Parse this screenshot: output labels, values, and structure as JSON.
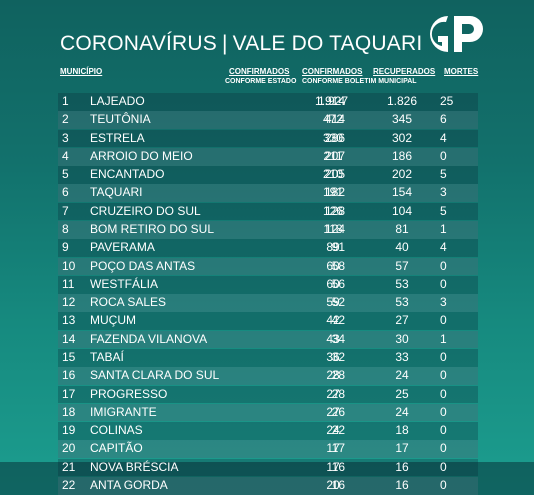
{
  "title": {
    "left": "CORONAVÍRUS",
    "separator": "|",
    "right": "VALE DO TAQUARI"
  },
  "logo": {
    "text": "GP"
  },
  "headers": {
    "municipio": "MUNICÍPIO",
    "confirmados_estado": "CONFIRMADOS",
    "confirmados_estado_sub": "CONFORME ESTADO",
    "confirmados_boletim": "CONFIRMADOS",
    "recuperados": "RECUPERADOS",
    "boletim_sub": "CONFORME BOLETIM MUNICIPAL",
    "mortes": "MORTES"
  },
  "rows": [
    {
      "num": "1",
      "name": "LAJEADO",
      "conf_estado": "1.914",
      "conf_boletim": "1.927",
      "recuperados": "1.826",
      "mortes": "25"
    },
    {
      "num": "2",
      "name": "TEUTÔNIA",
      "conf_estado": "414",
      "conf_boletim": "472",
      "recuperados": "345",
      "mortes": "6"
    },
    {
      "num": "3",
      "name": "ESTRELA",
      "conf_estado": "286",
      "conf_boletim": "330",
      "recuperados": "302",
      "mortes": "4"
    },
    {
      "num": "4",
      "name": "ARROIO DO MEIO",
      "conf_estado": "207",
      "conf_boletim": "211",
      "recuperados": "186",
      "mortes": "0"
    },
    {
      "num": "5",
      "name": "ENCANTADO",
      "conf_estado": "205",
      "conf_boletim": "210",
      "recuperados": "202",
      "mortes": "5"
    },
    {
      "num": "6",
      "name": "TAQUARI",
      "conf_estado": "182",
      "conf_boletim": "191",
      "recuperados": "154",
      "mortes": "3"
    },
    {
      "num": "7",
      "name": "CRUZEIRO DO SUL",
      "conf_estado": "128",
      "conf_boletim": "126",
      "recuperados": "104",
      "mortes": "5"
    },
    {
      "num": "8",
      "name": "BOM RETIRO DO SUL",
      "conf_estado": "124",
      "conf_boletim": "118",
      "recuperados": "81",
      "mortes": "1"
    },
    {
      "num": "9",
      "name": "PAVERAMA",
      "conf_estado": "91",
      "conf_boletim": "89",
      "recuperados": "40",
      "mortes": "4"
    },
    {
      "num": "10",
      "name": "POÇO DAS ANTAS",
      "conf_estado": "58",
      "conf_boletim": "60",
      "recuperados": "57",
      "mortes": "0"
    },
    {
      "num": "11",
      "name": "WESTFÁLIA",
      "conf_estado": "56",
      "conf_boletim": "60",
      "recuperados": "53",
      "mortes": "0"
    },
    {
      "num": "12",
      "name": "ROCA SALES",
      "conf_estado": "52",
      "conf_boletim": "59",
      "recuperados": "53",
      "mortes": "3"
    },
    {
      "num": "13",
      "name": "MUÇUM",
      "conf_estado": "42",
      "conf_boletim": "42",
      "recuperados": "27",
      "mortes": "0"
    },
    {
      "num": "14",
      "name": "FAZENDA VILANOVA",
      "conf_estado": "34",
      "conf_boletim": "43",
      "recuperados": "30",
      "mortes": "1"
    },
    {
      "num": "15",
      "name": "TABAÍ",
      "conf_estado": "32",
      "conf_boletim": "36",
      "recuperados": "33",
      "mortes": "0"
    },
    {
      "num": "16",
      "name": "SANTA CLARA DO SUL",
      "conf_estado": "28",
      "conf_boletim": "28",
      "recuperados": "24",
      "mortes": "0"
    },
    {
      "num": "17",
      "name": "PROGRESSO",
      "conf_estado": "28",
      "conf_boletim": "27",
      "recuperados": "25",
      "mortes": "0"
    },
    {
      "num": "18",
      "name": "IMIGRANTE",
      "conf_estado": "26",
      "conf_boletim": "27",
      "recuperados": "24",
      "mortes": "0"
    },
    {
      "num": "19",
      "name": "COLINAS",
      "conf_estado": "22",
      "conf_boletim": "24",
      "recuperados": "18",
      "mortes": "0"
    },
    {
      "num": "20",
      "name": "CAPITÃO",
      "conf_estado": "17",
      "conf_boletim": "17",
      "recuperados": "17",
      "mortes": "0"
    },
    {
      "num": "21",
      "name": "NOVA BRÉSCIA",
      "conf_estado": "16",
      "conf_boletim": "17",
      "recuperados": "16",
      "mortes": "0"
    },
    {
      "num": "22",
      "name": "ANTA GORDA",
      "conf_estado": "16",
      "conf_boletim": "20",
      "recuperados": "16",
      "mortes": "0"
    }
  ]
}
